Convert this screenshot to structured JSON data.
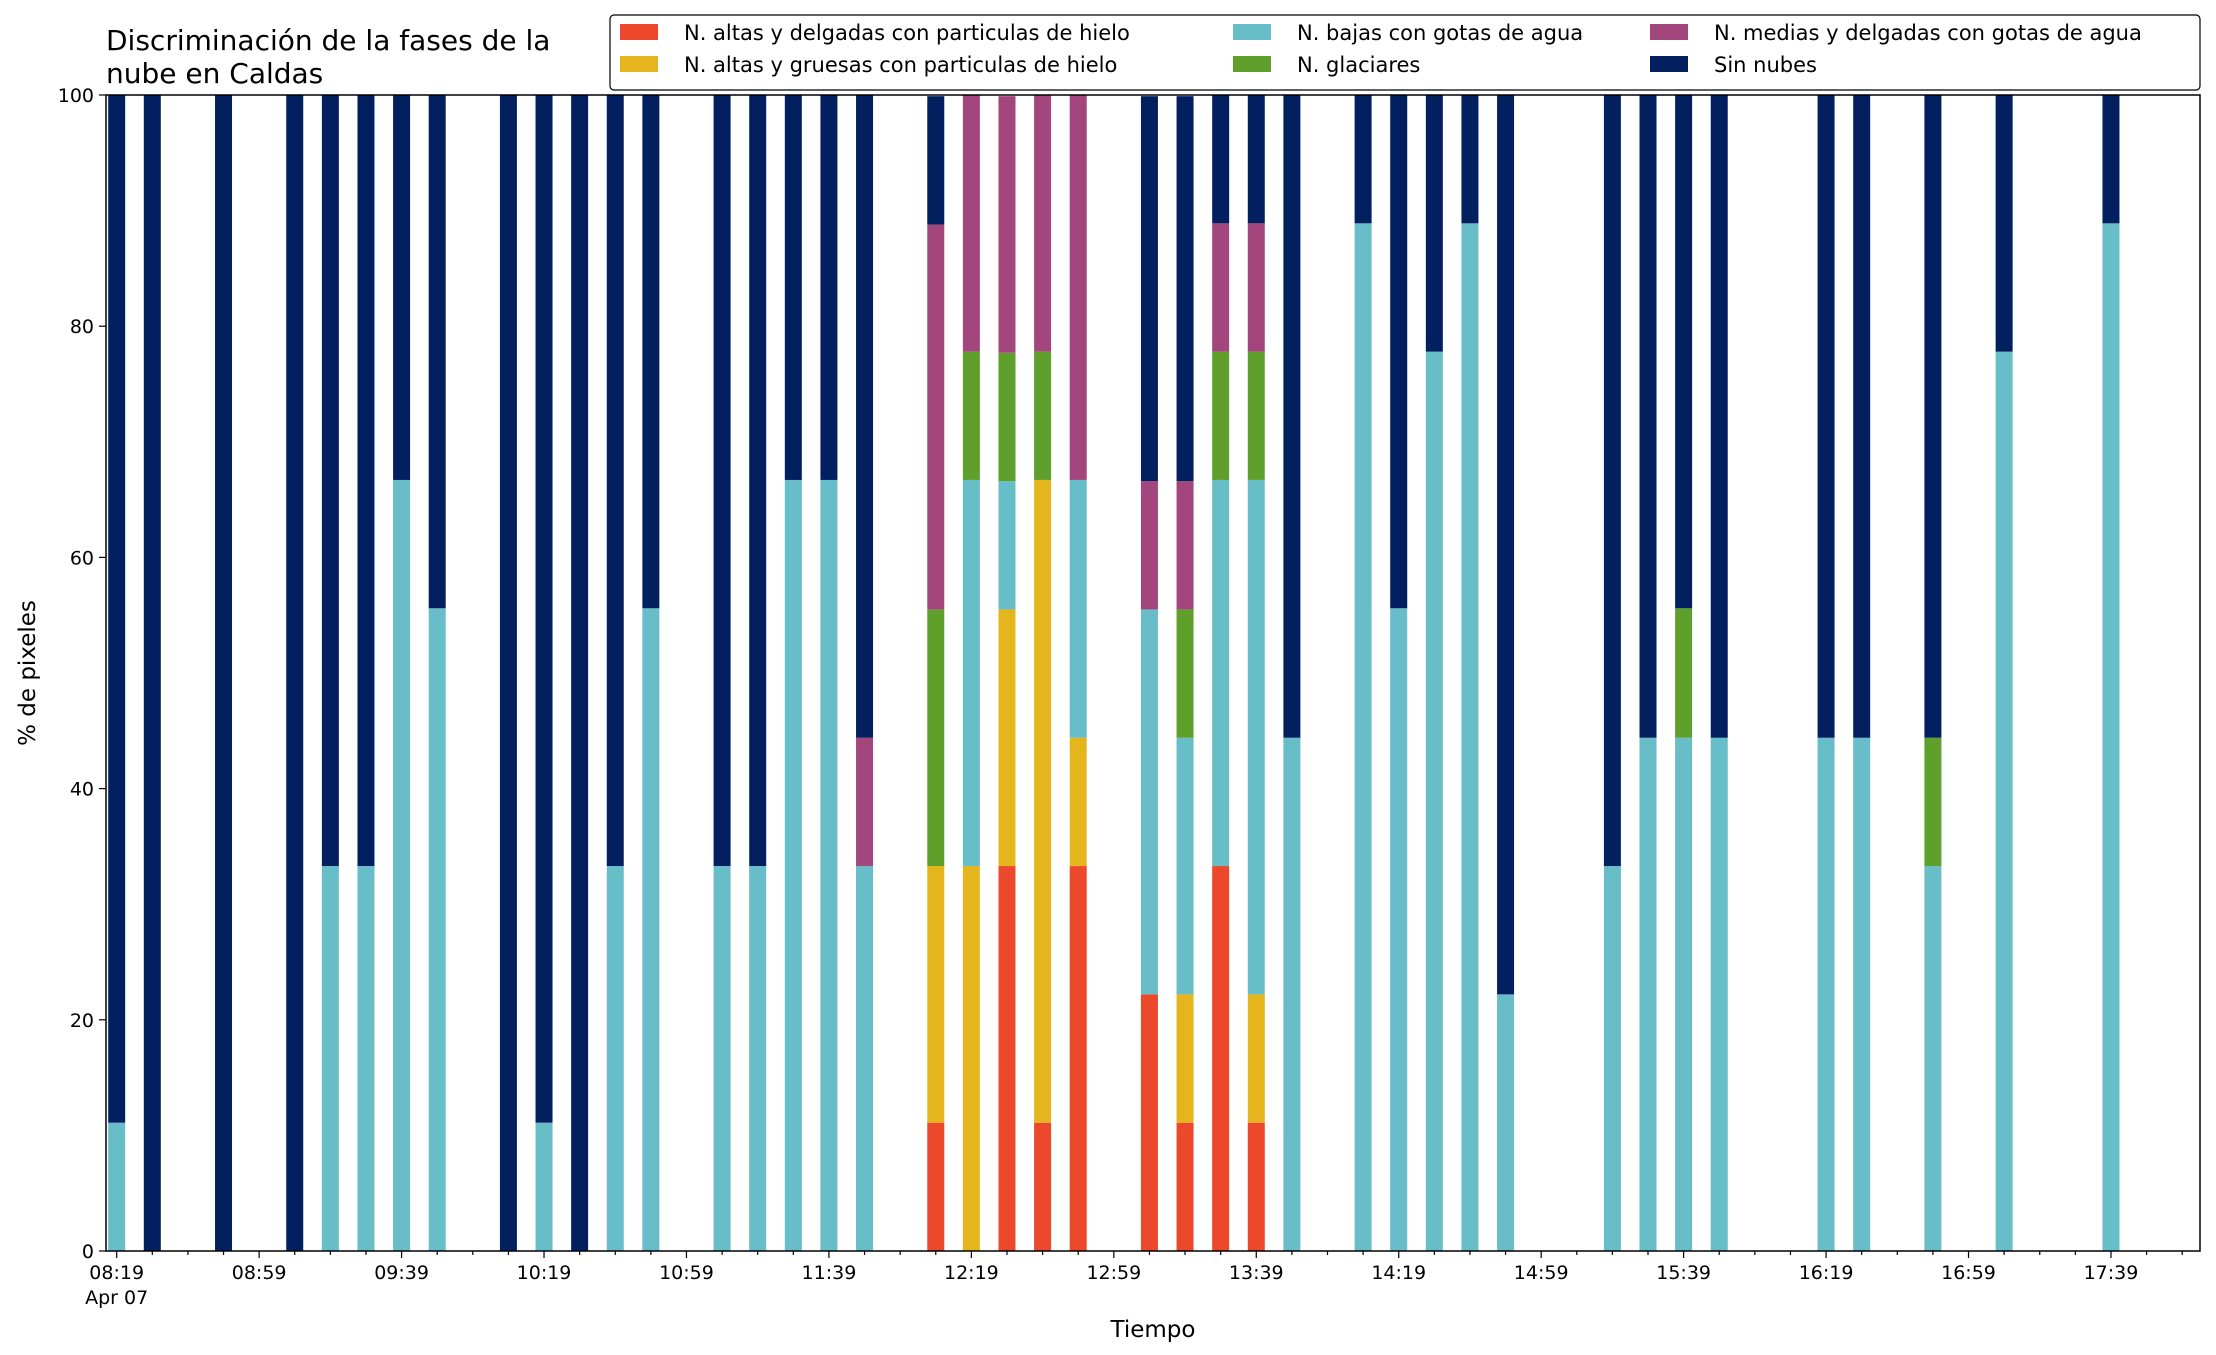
{
  "chart_data": {
    "type": "bar",
    "stacked": true,
    "title": "Discriminación de la fases de la nube en Caldas",
    "title_lines": [
      "Discriminación de la fases de la",
      "nube en Caldas"
    ],
    "xlabel": "Tiempo",
    "ylabel": "% de pixeles",
    "ylim": [
      0,
      100
    ],
    "yticks": [
      0,
      20,
      40,
      60,
      80,
      100
    ],
    "date_label": "Apr 07",
    "slot_interval_minutes": 10,
    "x_start": "08:19",
    "x_end": "17:59",
    "xtick_labels": [
      "08:19",
      "08:59",
      "09:39",
      "10:19",
      "10:59",
      "11:39",
      "12:19",
      "12:59",
      "13:39",
      "14:19",
      "14:59",
      "15:39",
      "16:19",
      "16:59",
      "17:39"
    ],
    "grid": false,
    "legend_position": "top-right",
    "x": [
      "08:19",
      "08:29",
      "08:49",
      "09:09",
      "09:19",
      "09:29",
      "09:39",
      "09:49",
      "10:09",
      "10:19",
      "10:29",
      "10:39",
      "10:49",
      "11:09",
      "11:19",
      "11:29",
      "11:39",
      "11:49",
      "12:09",
      "12:19",
      "12:29",
      "12:39",
      "12:49",
      "13:09",
      "13:19",
      "13:29",
      "13:39",
      "13:49",
      "14:09",
      "14:19",
      "14:29",
      "14:39",
      "14:49",
      "15:19",
      "15:29",
      "15:39",
      "15:49",
      "16:19",
      "16:29",
      "16:49",
      "17:09",
      "17:39"
    ],
    "series": [
      {
        "name": "N. altas y delgadas con particulas de hielo",
        "color": "#ec482c",
        "values": [
          0,
          0,
          0,
          0,
          0,
          0,
          0,
          0,
          0,
          0,
          0,
          0,
          0,
          0,
          0,
          0,
          0,
          0,
          11.1,
          0,
          33.3,
          11.1,
          33.3,
          22.2,
          11.1,
          33.3,
          11.1,
          0,
          0,
          0,
          0,
          0,
          0,
          0,
          0,
          0,
          0,
          0,
          0,
          0,
          0,
          0
        ]
      },
      {
        "name": "N. altas y gruesas con particulas de hielo",
        "color": "#e5b51d",
        "values": [
          0,
          0,
          0,
          0,
          0,
          0,
          0,
          0,
          0,
          0,
          0,
          0,
          0,
          0,
          0,
          0,
          0,
          0,
          22.2,
          33.3,
          22.2,
          55.6,
          11.1,
          0,
          11.1,
          0,
          11.1,
          0,
          0,
          0,
          0,
          0,
          0,
          0,
          0,
          0,
          0,
          0,
          0,
          0,
          0,
          0
        ]
      },
      {
        "name": "N. bajas con gotas de agua",
        "color": "#67bdc8",
        "values": [
          11.1,
          0,
          0,
          0,
          33.3,
          33.3,
          66.7,
          55.6,
          0,
          11.1,
          0,
          33.3,
          55.6,
          33.3,
          33.3,
          66.7,
          66.7,
          33.3,
          0,
          33.4,
          11.1,
          0,
          22.3,
          33.3,
          22.2,
          33.4,
          44.5,
          44.4,
          88.9,
          55.6,
          77.8,
          88.9,
          22.2,
          33.3,
          44.4,
          44.4,
          44.4,
          44.4,
          44.4,
          33.3,
          77.8,
          88.9
        ]
      },
      {
        "name": "N. glaciares",
        "color": "#5fa02c",
        "values": [
          0,
          0,
          0,
          0,
          0,
          0,
          0,
          0,
          0,
          0,
          0,
          0,
          0,
          0,
          0,
          0,
          0,
          0,
          22.2,
          11.1,
          11.1,
          11.1,
          0,
          0,
          11.1,
          11.1,
          11.1,
          0,
          0,
          0,
          0,
          0,
          0,
          0,
          0,
          11.2,
          0,
          0,
          0,
          11.1,
          0,
          0
        ]
      },
      {
        "name": "N. medias y delgadas con gotas de agua",
        "color": "#a2467d",
        "values": [
          0,
          0,
          0,
          0,
          0,
          0,
          0,
          0,
          0,
          0,
          0,
          0,
          0,
          0,
          0,
          0,
          0,
          11.1,
          33.3,
          22.2,
          22.2,
          22.2,
          33.3,
          11.1,
          11.1,
          11.1,
          11.1,
          0,
          0,
          0,
          0,
          0,
          0,
          0,
          0,
          0,
          0,
          0,
          0,
          0,
          0,
          0
        ]
      },
      {
        "name": "Sin nubes",
        "color": "#02205f",
        "values": [
          88.9,
          100,
          100,
          100,
          66.7,
          66.7,
          33.3,
          44.4,
          100,
          88.9,
          100,
          66.7,
          44.4,
          66.7,
          66.7,
          33.3,
          33.3,
          55.6,
          11.1,
          0,
          0,
          0,
          0,
          33.3,
          33.3,
          11.1,
          11.1,
          55.6,
          11.1,
          44.4,
          22.2,
          11.1,
          77.8,
          66.7,
          55.6,
          44.4,
          55.6,
          55.6,
          55.6,
          55.6,
          22.2,
          11.1
        ]
      }
    ]
  }
}
